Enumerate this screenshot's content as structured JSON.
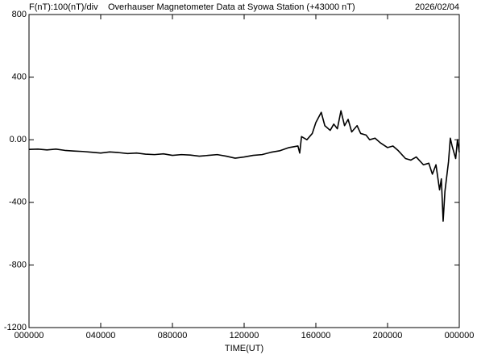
{
  "chart_data": {
    "type": "line",
    "title": "Overhauser Magnetometer Data at Syowa Station (+43000 nT)",
    "subtitle": "F(nT):100(nT)/div",
    "date": "2026/02/04",
    "x_label": "TIME(UT)",
    "xlim": [
      0,
      24
    ],
    "xticks": [
      {
        "value": 0,
        "label": "000000"
      },
      {
        "value": 4,
        "label": "040000"
      },
      {
        "value": 8,
        "label": "080000"
      },
      {
        "value": 12,
        "label": "120000"
      },
      {
        "value": 16,
        "label": "160000"
      },
      {
        "value": 20,
        "label": "200000"
      },
      {
        "value": 24,
        "label": "000000"
      }
    ],
    "ylim": [
      -1200,
      800
    ],
    "yticks": [
      800,
      400,
      {
        "value": 0,
        "label": "0.00"
      },
      -400,
      -800,
      -1200
    ],
    "grid": false,
    "series": [
      {
        "color": "#000000",
        "x": [
          0,
          0.5,
          1,
          1.5,
          2,
          2.5,
          3,
          3.5,
          4,
          4.5,
          5,
          5.5,
          6,
          6.5,
          7,
          7.5,
          8,
          8.5,
          9,
          9.5,
          10,
          10.5,
          11,
          11.5,
          12,
          12.5,
          13,
          13.5,
          14,
          14.5,
          15,
          15.1,
          15.2,
          15.5,
          15.8,
          16,
          16.3,
          16.5,
          16.8,
          17,
          17.2,
          17.4,
          17.6,
          17.8,
          18,
          18.3,
          18.5,
          18.8,
          19,
          19.3,
          19.6,
          20,
          20.3,
          20.6,
          21,
          21.3,
          21.6,
          22,
          22.3,
          22.5,
          22.7,
          22.9,
          23,
          23.1,
          23.2,
          23.4,
          23.5,
          23.6,
          23.8,
          23.9,
          24
        ],
        "values": [
          -62,
          -60,
          -65,
          -60,
          -68,
          -72,
          -75,
          -80,
          -85,
          -78,
          -82,
          -88,
          -85,
          -92,
          -95,
          -90,
          -100,
          -95,
          -98,
          -105,
          -100,
          -95,
          -105,
          -118,
          -110,
          -100,
          -95,
          -80,
          -70,
          -50,
          -40,
          -85,
          20,
          0,
          40,
          110,
          175,
          90,
          60,
          100,
          70,
          185,
          90,
          130,
          50,
          90,
          40,
          30,
          0,
          10,
          -20,
          -50,
          -40,
          -70,
          -120,
          -130,
          -110,
          -160,
          -150,
          -220,
          -160,
          -320,
          -250,
          -520,
          -330,
          -140,
          10,
          -40,
          -120,
          0,
          -80
        ]
      }
    ]
  }
}
